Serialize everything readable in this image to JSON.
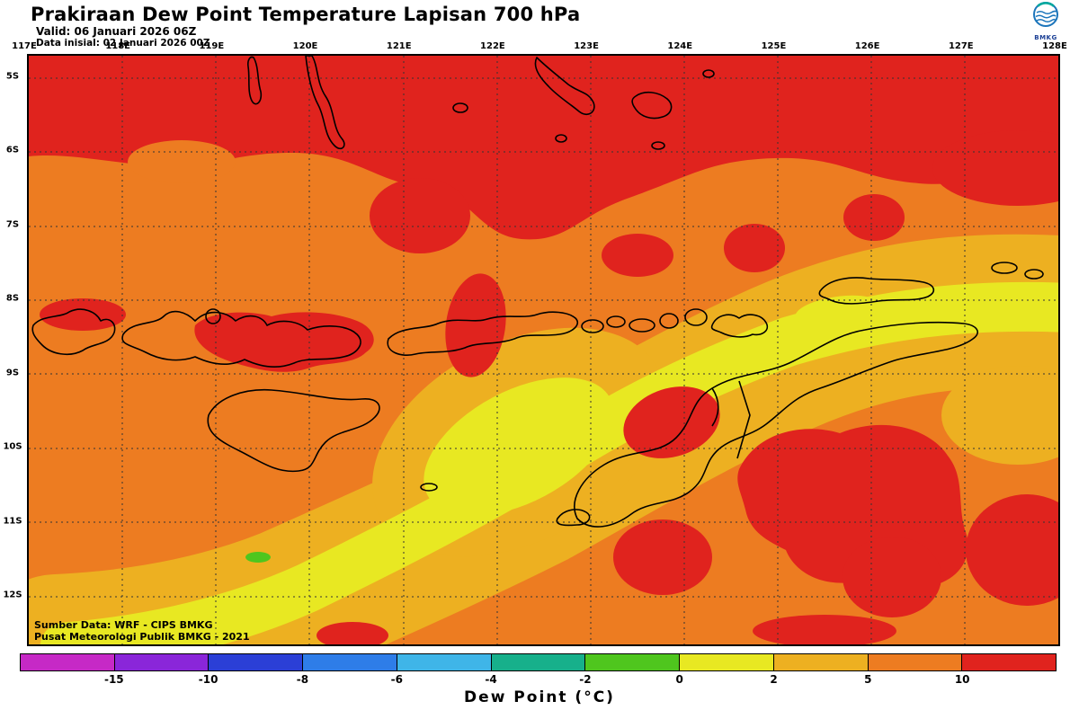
{
  "header": {
    "title": "Prakiraan Dew Point Temperature Lapisan 700 hPa",
    "valid": "Valid: 06 Januari 2026 06Z",
    "init": "Data inisial: 02 Januari 2026 00Z",
    "logo_label": "BMKG"
  },
  "map": {
    "lon_labels": [
      "117E",
      "118E",
      "119E",
      "120E",
      "121E",
      "122E",
      "123E",
      "124E",
      "125E",
      "126E",
      "127E",
      "128E"
    ],
    "lat_labels": [
      "5S",
      "6S",
      "7S",
      "8S",
      "9S",
      "10S",
      "11S",
      "12S"
    ],
    "source_line1": "Sumber Data: WRF - CIPS BMKG",
    "source_line2": "Pusat Meteorologi Publik BMKG - 2021"
  },
  "colorbar": {
    "title": "Dew Point (°C)",
    "tick_labels": [
      "-15",
      "-10",
      "-8",
      "-6",
      "-4",
      "-2",
      "0",
      "2",
      "5",
      "10"
    ],
    "colors": [
      "#C629C6",
      "#8A26D9",
      "#2B3FD6",
      "#2E7DE8",
      "#3FB5E8",
      "#17B08B",
      "#4FC61E",
      "#E8E822",
      "#EDB021",
      "#ED7C21",
      "#E0231E"
    ]
  },
  "fills": {
    "background": "#ED7C21",
    "red": "#E0231E",
    "amber": "#EDB021",
    "yellow": "#E8E822",
    "green": "#4FC61E",
    "outline": "#000000"
  }
}
